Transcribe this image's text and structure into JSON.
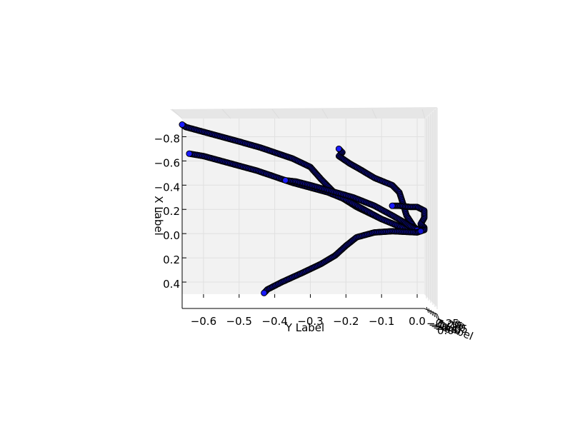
{
  "chart_data": {
    "type": "scatter",
    "projection": "3d",
    "title": "",
    "xlabel": "X Label",
    "ylabel": "Y Label",
    "zlabel": "Z Label",
    "xticks": [
      "−0.8",
      "−0.6",
      "−0.4",
      "−0.2",
      "0.0",
      "0.2",
      "0.4"
    ],
    "yticks": [
      "−0.6",
      "−0.5",
      "−0.4",
      "−0.3",
      "−0.2",
      "−0.1",
      "0.0"
    ],
    "zticks": [
      "−0.25",
      "−0.20",
      "−0.15",
      "−0.10",
      "−0.05",
      "0.00"
    ],
    "xlim": [
      0.5,
      -0.95
    ],
    "ylim": [
      -0.66,
      0.02
    ],
    "grid": true,
    "marker_face": "#1010cc",
    "marker_edge": "#000000",
    "series": [
      {
        "points": [
          [
            -0.9,
            -0.66
          ],
          [
            -0.88,
            -0.65
          ],
          [
            -0.84,
            -0.6
          ],
          [
            -0.8,
            -0.55
          ],
          [
            -0.76,
            -0.5
          ],
          [
            -0.71,
            -0.44
          ],
          [
            -0.66,
            -0.39
          ],
          [
            -0.62,
            -0.35
          ],
          [
            -0.55,
            -0.3
          ],
          [
            -0.45,
            -0.27
          ],
          [
            -0.33,
            -0.23
          ],
          [
            -0.22,
            -0.17
          ],
          [
            -0.12,
            -0.1
          ],
          [
            -0.06,
            -0.05
          ],
          [
            -0.03,
            -0.02
          ],
          [
            -0.04,
            0.0
          ],
          [
            -0.02,
            0.01
          ]
        ]
      },
      {
        "points": [
          [
            -0.66,
            -0.64
          ],
          [
            -0.64,
            -0.6
          ],
          [
            -0.6,
            -0.55
          ],
          [
            -0.56,
            -0.5
          ],
          [
            -0.52,
            -0.45
          ],
          [
            -0.47,
            -0.4
          ],
          [
            -0.42,
            -0.35
          ],
          [
            -0.38,
            -0.3
          ],
          [
            -0.34,
            -0.25
          ],
          [
            -0.28,
            -0.2
          ],
          [
            -0.2,
            -0.15
          ],
          [
            -0.12,
            -0.1
          ],
          [
            -0.06,
            -0.05
          ],
          [
            -0.03,
            -0.02
          ],
          [
            -0.02,
            0.01
          ]
        ]
      },
      {
        "points": [
          [
            -0.7,
            -0.22
          ],
          [
            -0.67,
            -0.21
          ],
          [
            -0.64,
            -0.22
          ],
          [
            -0.58,
            -0.19
          ],
          [
            -0.53,
            -0.16
          ],
          [
            -0.46,
            -0.12
          ],
          [
            -0.4,
            -0.07
          ],
          [
            -0.34,
            -0.05
          ],
          [
            -0.25,
            -0.04
          ],
          [
            -0.15,
            -0.03
          ],
          [
            -0.06,
            -0.01
          ],
          [
            -0.03,
            0.0
          ],
          [
            -0.02,
            0.01
          ]
        ]
      },
      {
        "points": [
          [
            -0.44,
            -0.37
          ],
          [
            -0.43,
            -0.34
          ],
          [
            -0.4,
            -0.3
          ],
          [
            -0.35,
            -0.24
          ],
          [
            -0.3,
            -0.18
          ],
          [
            -0.23,
            -0.12
          ],
          [
            -0.15,
            -0.07
          ],
          [
            -0.1,
            -0.04
          ],
          [
            -0.06,
            -0.02
          ],
          [
            -0.03,
            0.0
          ]
        ]
      },
      {
        "points": [
          [
            -0.23,
            -0.07
          ],
          [
            -0.23,
            -0.05
          ],
          [
            -0.22,
            -0.02
          ],
          [
            -0.22,
            0.0
          ],
          [
            -0.19,
            0.02
          ],
          [
            -0.13,
            0.02
          ],
          [
            -0.08,
            0.01
          ],
          [
            -0.05,
            0.02
          ],
          [
            -0.03,
            0.02
          ],
          [
            -0.02,
            0.01
          ]
        ]
      },
      {
        "points": [
          [
            0.49,
            -0.43
          ],
          [
            0.46,
            -0.42
          ],
          [
            0.4,
            -0.38
          ],
          [
            0.32,
            -0.32
          ],
          [
            0.25,
            -0.27
          ],
          [
            0.18,
            -0.23
          ],
          [
            0.1,
            -0.2
          ],
          [
            0.03,
            -0.17
          ],
          [
            -0.01,
            -0.12
          ],
          [
            -0.02,
            -0.07
          ],
          [
            -0.01,
            0.0
          ],
          [
            -0.02,
            0.01
          ]
        ]
      }
    ]
  }
}
